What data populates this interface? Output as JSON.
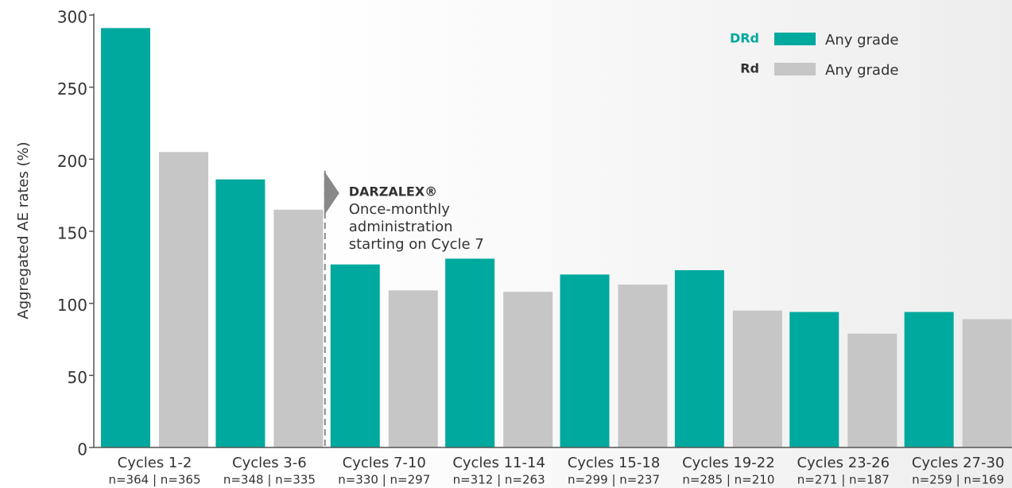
{
  "chart_data": {
    "type": "bar",
    "y_label": "Aggregated AE rates (%)",
    "categories": [
      "Cycles 1-2",
      "Cycles 3-6",
      "Cycles 7-10",
      "Cycles 11-14",
      "Cycles 15-18",
      "Cycles 19-22",
      "Cycles 23-26",
      "Cycles 27-30"
    ],
    "category_sublabels": [
      "n=364 | n=365",
      "n=348 | n=335",
      "n=330 | n=297",
      "n=312 | n=263",
      "n=299 | n=237",
      "n=285 | n=210",
      "n=271 | n=187",
      "n=259 | n=169"
    ],
    "series": [
      {
        "name": "DRd",
        "legend_label": "Any grade",
        "color": "#00a99d",
        "values": [
          291,
          186,
          127,
          131,
          120,
          123,
          94,
          94
        ]
      },
      {
        "name": "Rd",
        "legend_label": "Any grade",
        "color": "#c6c6c6",
        "values": [
          205,
          165,
          109,
          108,
          113,
          95,
          79,
          89
        ]
      }
    ],
    "ylim": [
      0,
      300
    ],
    "yticks": [
      0,
      50,
      100,
      150,
      200,
      250,
      300
    ],
    "annotation": {
      "title": "DARZALEX®",
      "lines": [
        "Once-monthly",
        "administration",
        "starting on Cycle 7"
      ],
      "category_index": 2
    }
  }
}
